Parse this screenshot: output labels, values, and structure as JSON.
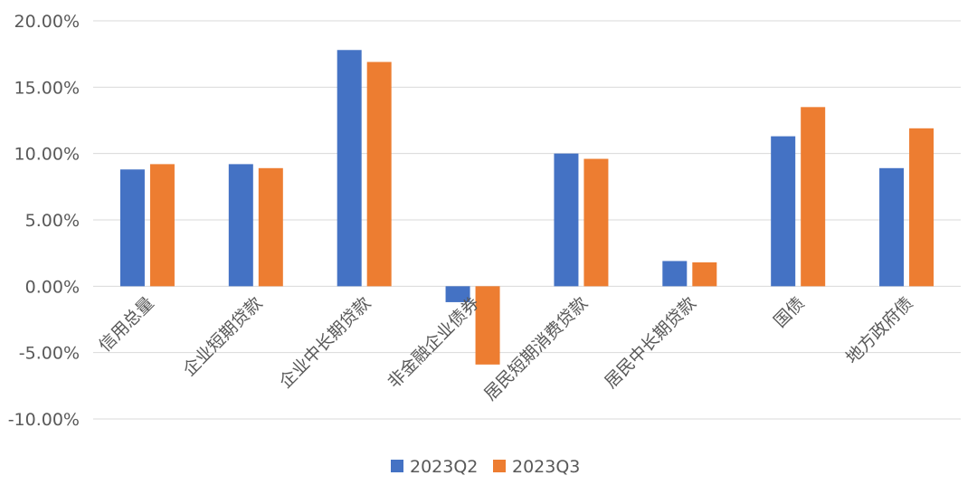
{
  "chart_data": {
    "type": "bar",
    "categories": [
      "信用总量",
      "企业短期贷款",
      "企业中长期贷款",
      "非金融企业债券",
      "居民短期消费贷款",
      "居民中长期贷款",
      "国债",
      "地方政府债"
    ],
    "series": [
      {
        "name": "2023Q2",
        "color": "#4472C4",
        "values": [
          8.8,
          9.2,
          17.8,
          -1.2,
          10.0,
          1.9,
          11.3,
          8.9
        ]
      },
      {
        "name": "2023Q3",
        "color": "#ED7D31",
        "values": [
          9.2,
          8.9,
          16.9,
          -5.9,
          9.6,
          1.8,
          13.5,
          11.9
        ]
      }
    ],
    "y_ticks": [
      "20.00%",
      "15.00%",
      "10.00%",
      "5.00%",
      "0.00%",
      "-5.00%",
      "-10.00%"
    ],
    "ylim": [
      -10,
      20
    ],
    "y_tick_step": 5,
    "grid": true,
    "legend_position": "bottom"
  }
}
